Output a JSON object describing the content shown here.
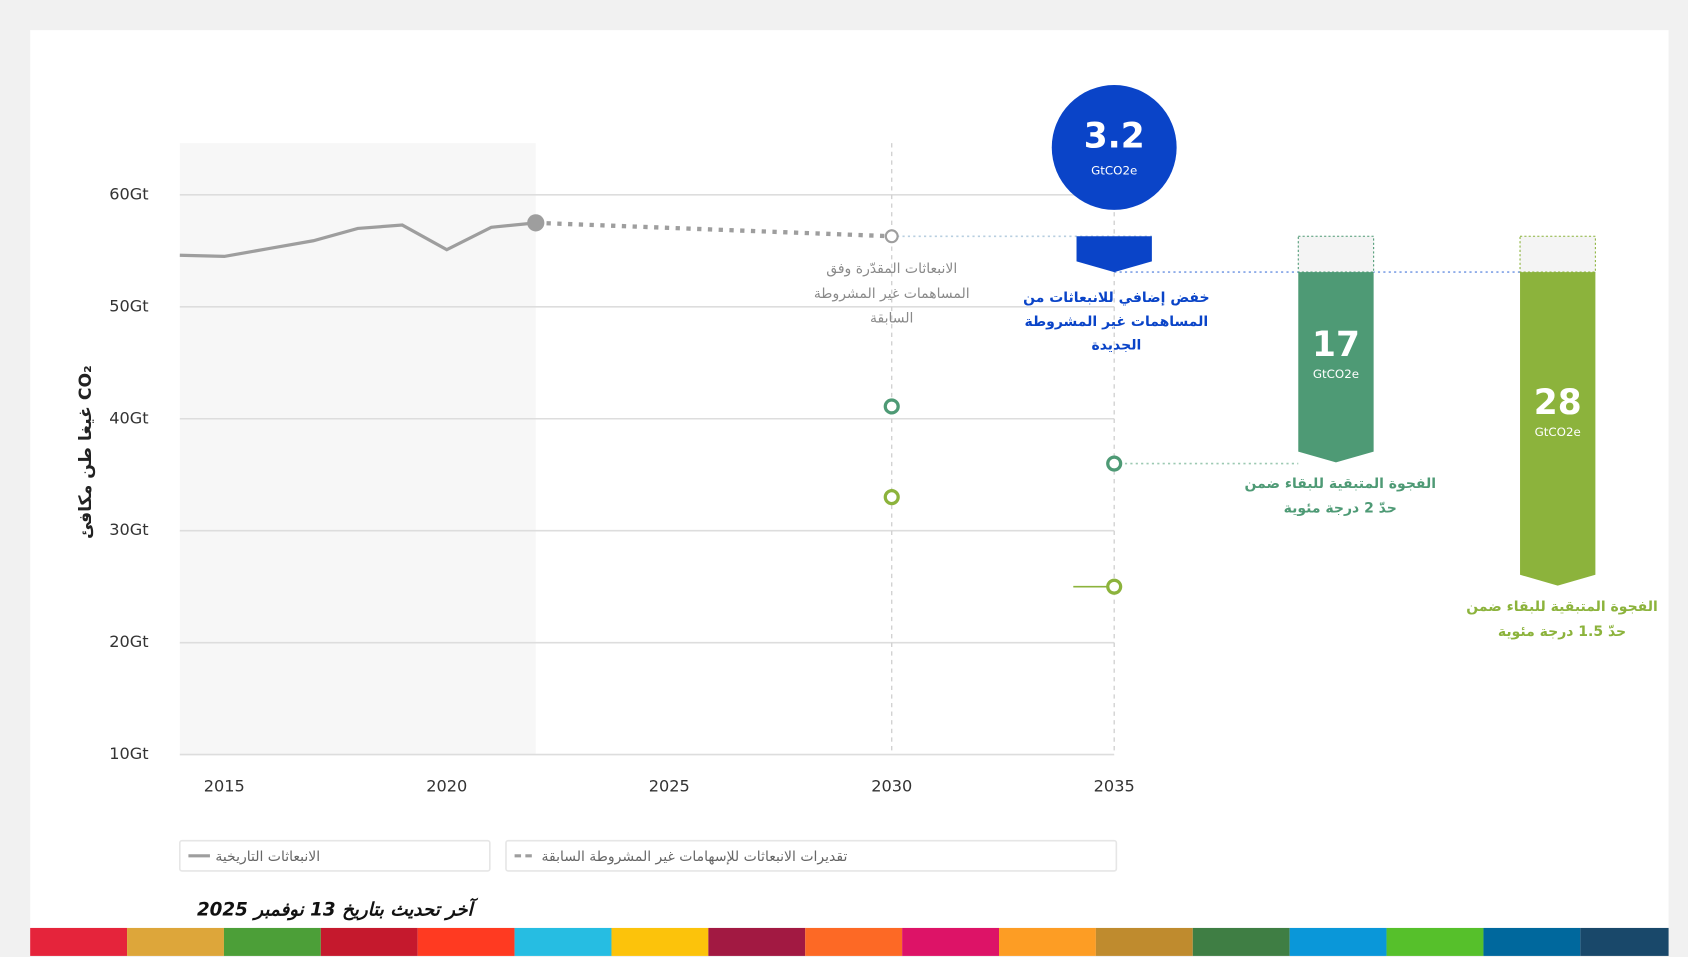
{
  "chart_data": {
    "type": "line",
    "y_label": "غيغا طن مكافئ CO₂",
    "xlim": [
      2014,
      2035
    ],
    "xticks": [
      2015,
      2020,
      2025,
      2030,
      2035
    ],
    "ylim": [
      10,
      65
    ],
    "yticks": [
      {
        "value": 10,
        "label": "10Gt"
      },
      {
        "value": 20,
        "label": "20Gt"
      },
      {
        "value": 30,
        "label": "30Gt"
      },
      {
        "value": 40,
        "label": "40Gt"
      },
      {
        "value": 50,
        "label": "50Gt"
      },
      {
        "value": 60,
        "label": "60Gt"
      }
    ],
    "grid": true,
    "series": [
      {
        "name": "الانبعاثات التاريخية",
        "color": "#9e9e9e",
        "style": "solid",
        "x": [
          2014,
          2015,
          2016,
          2017,
          2018,
          2019,
          2020,
          2021,
          2022
        ],
        "values": [
          54.6,
          54.5,
          55.2,
          55.9,
          57.0,
          57.3,
          55.1,
          57.1,
          57.5
        ]
      },
      {
        "name": "تقديرات الانبعاثات للإسهامات غير المشروطة السابقة",
        "color": "#9e9e9e",
        "style": "dashed",
        "x": [
          2022,
          2030
        ],
        "values": [
          57.5,
          56.3
        ],
        "note": [
          "الانبعاثات المقدّرة وفق",
          "المساهمات غير المشروطة",
          "السابقة"
        ]
      },
      {
        "color": "#4e9a75",
        "style": "points",
        "x": [
          2030,
          2035
        ],
        "values": [
          41.1,
          36.0
        ]
      },
      {
        "color": "#8cb33c",
        "style": "points",
        "x": [
          2030,
          2035
        ],
        "values": [
          33.0,
          25.0
        ]
      }
    ],
    "gaps": [
      {
        "value": 3.2,
        "unit": "GtCO2e",
        "color": "#0a44c8",
        "lines": [
          "خفض إضافي للانبعاثات من",
          "المساهمات غير المشروطة",
          "الجديدة"
        ]
      },
      {
        "value": 17,
        "unit": "GtCO2e",
        "color": "#4e9a75",
        "lines": [
          "الفجوة المتبقية للبقاء ضمن",
          "حدّ 2 درجة مئوية"
        ]
      },
      {
        "value": 28,
        "unit": "GtCO2e",
        "color": "#8cb33c",
        "lines": [
          "الفجوة المتبقية للبقاء ضمن",
          "حدّ 1.5 درجة مئوية"
        ]
      }
    ],
    "footer": "آخر تحديث بتاريخ 13 نوفمبر 2025"
  }
}
